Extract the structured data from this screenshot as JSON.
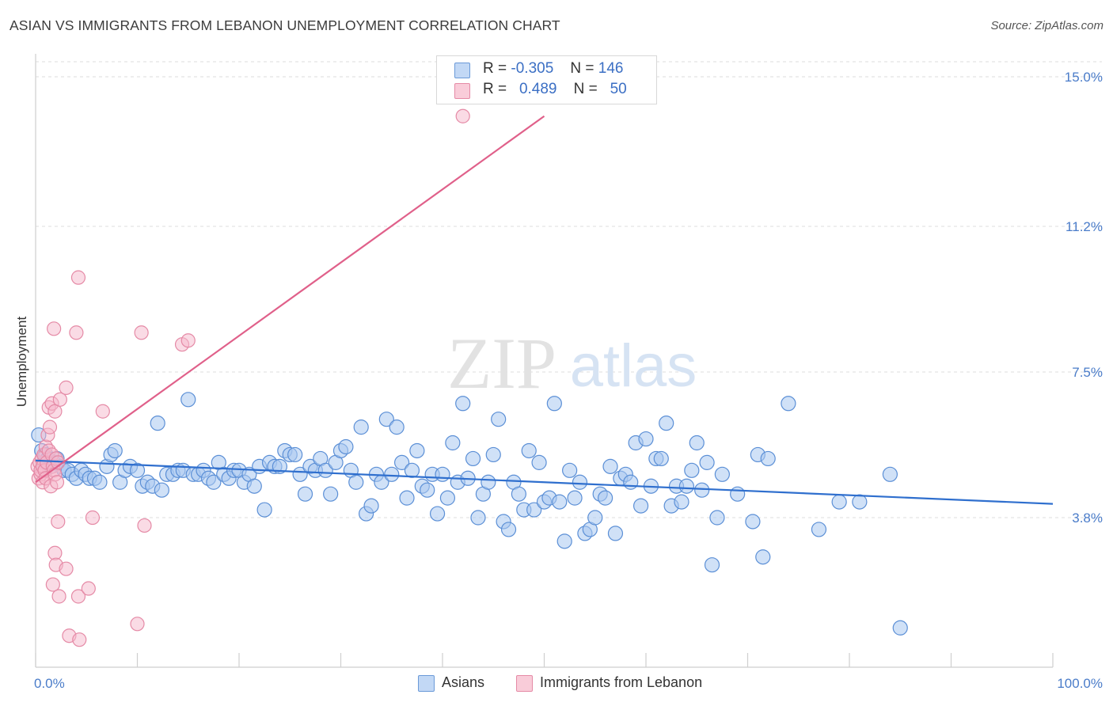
{
  "title": "ASIAN VS IMMIGRANTS FROM LEBANON UNEMPLOYMENT CORRELATION CHART",
  "source": "Source: ZipAtlas.com",
  "watermark": {
    "zip": "ZIP",
    "atlas": "atlas"
  },
  "colors": {
    "blue_fill": "#a9c8f0",
    "blue_stroke": "#5b8fd6",
    "blue_line": "#2f6fce",
    "pink_fill": "#f6b8cb",
    "pink_stroke": "#e58aa6",
    "pink_line": "#e0608a",
    "tick_label": "#4a7cc9",
    "grid": "#dddddd"
  },
  "legend": {
    "rows": [
      {
        "r_label": "R =",
        "r_value": "-0.305",
        "n_label": "N =",
        "n_value": "146"
      },
      {
        "r_label": "R =",
        "r_value": "0.489",
        "n_label": "N =",
        "n_value": "50"
      }
    ]
  },
  "bottom_legend": [
    "Asians",
    "Immigrants from Lebanon"
  ],
  "chart_data": {
    "type": "scatter",
    "title": "ASIAN VS IMMIGRANTS FROM LEBANON UNEMPLOYMENT CORRELATION CHART",
    "xlabel": "",
    "ylabel": "Unemployment",
    "xlim": [
      0,
      100
    ],
    "ylim": [
      0,
      15.5
    ],
    "y_ticks": [
      3.8,
      7.5,
      11.2,
      15.0
    ],
    "y_tick_labels": [
      "3.8%",
      "7.5%",
      "11.2%",
      "15.0%"
    ],
    "x_tick_labels": [
      "0.0%",
      "100.0%"
    ],
    "grid": true,
    "legend_placement": "top-center",
    "series": [
      {
        "name": "Asians",
        "color": "#5b8fd6",
        "trend": {
          "x": [
            0,
            100
          ],
          "y": [
            5.25,
            4.15
          ]
        },
        "points": [
          [
            0.3,
            5.9
          ],
          [
            0.6,
            5.5
          ],
          [
            0.8,
            5.2
          ],
          [
            1.0,
            5.4
          ],
          [
            1.2,
            5.3
          ],
          [
            1.5,
            5.1
          ],
          [
            1.8,
            5.2
          ],
          [
            2.1,
            5.3
          ],
          [
            2.5,
            5.1
          ],
          [
            2.8,
            5.0
          ],
          [
            3.2,
            5.0
          ],
          [
            3.6,
            4.9
          ],
          [
            4.0,
            4.8
          ],
          [
            4.5,
            5.0
          ],
          [
            4.9,
            4.9
          ],
          [
            5.3,
            4.8
          ],
          [
            5.8,
            4.8
          ],
          [
            6.3,
            4.7
          ],
          [
            7.0,
            5.1
          ],
          [
            7.4,
            5.4
          ],
          [
            7.8,
            5.5
          ],
          [
            8.3,
            4.7
          ],
          [
            8.8,
            5.0
          ],
          [
            9.3,
            5.1
          ],
          [
            10.0,
            5.0
          ],
          [
            10.5,
            4.6
          ],
          [
            11.0,
            4.7
          ],
          [
            11.5,
            4.6
          ],
          [
            12.0,
            6.2
          ],
          [
            12.4,
            4.5
          ],
          [
            12.9,
            4.9
          ],
          [
            13.5,
            4.9
          ],
          [
            14.0,
            5.0
          ],
          [
            14.5,
            5.0
          ],
          [
            15.0,
            6.8
          ],
          [
            15.5,
            4.9
          ],
          [
            16.0,
            4.9
          ],
          [
            16.5,
            5.0
          ],
          [
            17.0,
            4.8
          ],
          [
            17.5,
            4.7
          ],
          [
            18.0,
            5.2
          ],
          [
            18.5,
            4.9
          ],
          [
            19.0,
            4.8
          ],
          [
            19.5,
            5.0
          ],
          [
            20.0,
            5.0
          ],
          [
            20.5,
            4.7
          ],
          [
            21.0,
            4.9
          ],
          [
            21.5,
            4.6
          ],
          [
            22.0,
            5.1
          ],
          [
            22.5,
            4.0
          ],
          [
            23.0,
            5.2
          ],
          [
            23.5,
            5.1
          ],
          [
            24.0,
            5.1
          ],
          [
            24.5,
            5.5
          ],
          [
            25.0,
            5.4
          ],
          [
            25.5,
            5.4
          ],
          [
            26.0,
            4.9
          ],
          [
            26.5,
            4.4
          ],
          [
            27.0,
            5.1
          ],
          [
            27.5,
            5.0
          ],
          [
            28.0,
            5.3
          ],
          [
            28.5,
            5.0
          ],
          [
            29.0,
            4.4
          ],
          [
            29.5,
            5.2
          ],
          [
            30.0,
            5.5
          ],
          [
            30.5,
            5.6
          ],
          [
            31.0,
            5.0
          ],
          [
            31.5,
            4.7
          ],
          [
            32.0,
            6.1
          ],
          [
            32.5,
            3.9
          ],
          [
            33.0,
            4.1
          ],
          [
            33.5,
            4.9
          ],
          [
            34.0,
            4.7
          ],
          [
            34.5,
            6.3
          ],
          [
            35.0,
            4.9
          ],
          [
            35.5,
            6.1
          ],
          [
            36.0,
            5.2
          ],
          [
            36.5,
            4.3
          ],
          [
            37.0,
            5.0
          ],
          [
            37.5,
            5.5
          ],
          [
            38.0,
            4.6
          ],
          [
            38.5,
            4.5
          ],
          [
            39.0,
            4.9
          ],
          [
            39.5,
            3.9
          ],
          [
            40.0,
            4.9
          ],
          [
            40.5,
            4.3
          ],
          [
            41.0,
            5.7
          ],
          [
            41.5,
            4.7
          ],
          [
            42.0,
            6.7
          ],
          [
            42.5,
            4.8
          ],
          [
            43.0,
            5.3
          ],
          [
            43.5,
            3.8
          ],
          [
            44.0,
            4.4
          ],
          [
            44.5,
            4.7
          ],
          [
            45.0,
            5.4
          ],
          [
            45.5,
            6.3
          ],
          [
            46.0,
            3.7
          ],
          [
            46.5,
            3.5
          ],
          [
            47.0,
            4.7
          ],
          [
            47.5,
            4.4
          ],
          [
            48.0,
            4.0
          ],
          [
            48.5,
            5.5
          ],
          [
            49.0,
            4.0
          ],
          [
            49.5,
            5.2
          ],
          [
            50.0,
            4.2
          ],
          [
            50.5,
            4.3
          ],
          [
            51.0,
            6.7
          ],
          [
            51.5,
            4.2
          ],
          [
            52.0,
            3.2
          ],
          [
            52.5,
            5.0
          ],
          [
            53.0,
            4.3
          ],
          [
            53.5,
            4.7
          ],
          [
            54.0,
            3.4
          ],
          [
            54.5,
            3.5
          ],
          [
            55.0,
            3.8
          ],
          [
            55.5,
            4.4
          ],
          [
            56.0,
            4.3
          ],
          [
            56.5,
            5.1
          ],
          [
            57.0,
            3.4
          ],
          [
            57.5,
            4.8
          ],
          [
            58.0,
            4.9
          ],
          [
            58.5,
            4.7
          ],
          [
            59.0,
            5.7
          ],
          [
            59.5,
            4.1
          ],
          [
            60.0,
            5.8
          ],
          [
            60.5,
            4.6
          ],
          [
            61.0,
            5.3
          ],
          [
            61.5,
            5.3
          ],
          [
            62.0,
            6.2
          ],
          [
            62.5,
            4.1
          ],
          [
            63.0,
            4.6
          ],
          [
            63.5,
            4.2
          ],
          [
            64.0,
            4.6
          ],
          [
            64.5,
            5.0
          ],
          [
            65.0,
            5.7
          ],
          [
            65.5,
            4.5
          ],
          [
            66.0,
            5.2
          ],
          [
            66.5,
            2.6
          ],
          [
            67.0,
            3.8
          ],
          [
            67.5,
            4.9
          ],
          [
            69.0,
            4.4
          ],
          [
            70.5,
            3.7
          ],
          [
            71.0,
            5.4
          ],
          [
            71.5,
            2.8
          ],
          [
            72.0,
            5.3
          ],
          [
            74.0,
            6.7
          ],
          [
            77.0,
            3.5
          ],
          [
            79.0,
            4.2
          ],
          [
            81.0,
            4.2
          ],
          [
            84.0,
            4.9
          ],
          [
            85.0,
            1.0
          ]
        ]
      },
      {
        "name": "Immigrants from Lebanon",
        "color": "#e58aa6",
        "trend": {
          "x": [
            0,
            50
          ],
          "y": [
            4.7,
            14.0
          ]
        },
        "points": [
          [
            0.2,
            5.1
          ],
          [
            0.3,
            4.8
          ],
          [
            0.4,
            5.2
          ],
          [
            0.5,
            4.9
          ],
          [
            0.5,
            5.0
          ],
          [
            0.6,
            5.3
          ],
          [
            0.7,
            4.7
          ],
          [
            0.7,
            5.1
          ],
          [
            0.8,
            5.4
          ],
          [
            0.9,
            5.0
          ],
          [
            1.0,
            5.6
          ],
          [
            1.0,
            4.8
          ],
          [
            1.1,
            5.2
          ],
          [
            1.2,
            5.9
          ],
          [
            1.3,
            5.5
          ],
          [
            1.4,
            6.1
          ],
          [
            1.5,
            4.6
          ],
          [
            1.6,
            5.4
          ],
          [
            1.7,
            5.1
          ],
          [
            1.8,
            5.0
          ],
          [
            1.9,
            4.9
          ],
          [
            2.0,
            5.3
          ],
          [
            2.1,
            4.7
          ],
          [
            2.2,
            5.2
          ],
          [
            1.3,
            6.6
          ],
          [
            1.6,
            6.7
          ],
          [
            1.9,
            6.5
          ],
          [
            2.4,
            6.8
          ],
          [
            3.0,
            7.1
          ],
          [
            1.8,
            8.6
          ],
          [
            4.0,
            8.5
          ],
          [
            6.6,
            6.5
          ],
          [
            10.4,
            8.5
          ],
          [
            14.4,
            8.2
          ],
          [
            15.0,
            8.3
          ],
          [
            4.2,
            9.9
          ],
          [
            42.0,
            14.0
          ],
          [
            2.2,
            3.7
          ],
          [
            1.9,
            2.9
          ],
          [
            2.0,
            2.6
          ],
          [
            3.0,
            2.5
          ],
          [
            1.7,
            2.1
          ],
          [
            2.3,
            1.8
          ],
          [
            4.2,
            1.8
          ],
          [
            5.2,
            2.0
          ],
          [
            5.6,
            3.8
          ],
          [
            10.7,
            3.6
          ],
          [
            3.3,
            0.8
          ],
          [
            4.3,
            0.7
          ],
          [
            10.0,
            1.1
          ]
        ]
      }
    ]
  }
}
